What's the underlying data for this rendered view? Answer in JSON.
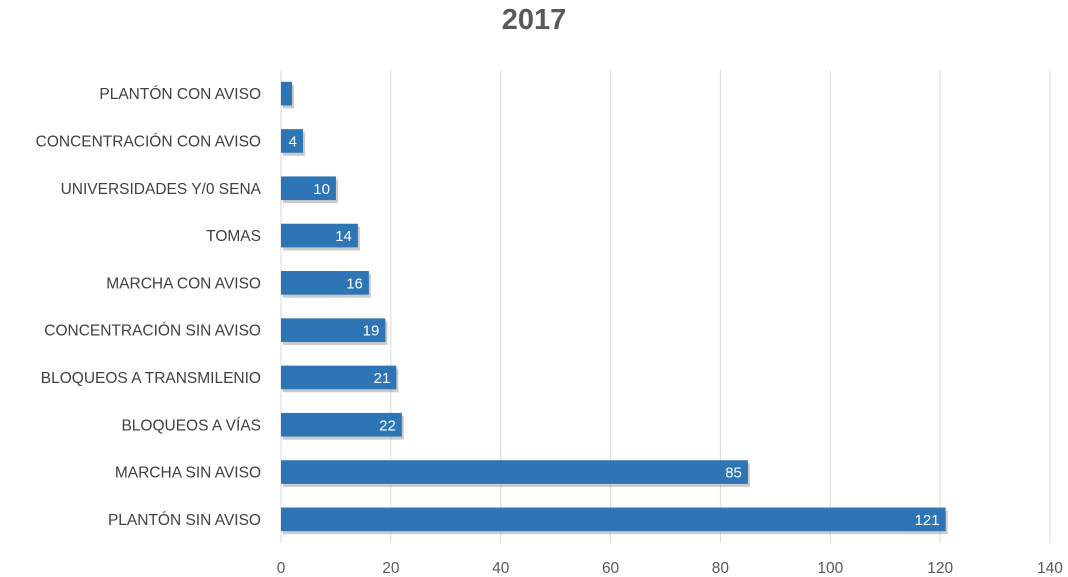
{
  "chart_data": {
    "type": "bar",
    "orientation": "horizontal",
    "title": "2017",
    "xlabel": "",
    "ylabel": "",
    "categories": [
      "PLANTÓN CON AVISO",
      "CONCENTRACIÓN CON AVISO",
      "UNIVERSIDADES Y/0 SENA",
      "TOMAS",
      "MARCHA CON AVISO",
      "CONCENTRACIÓN SIN AVISO",
      "BLOQUEOS A TRANSMILENIO",
      "BLOQUEOS A VÍAS",
      "MARCHA SIN AVISO",
      "PLANTÓN SIN AVISO"
    ],
    "values": [
      2,
      4,
      10,
      14,
      16,
      19,
      21,
      22,
      85,
      121
    ],
    "data_labels": [
      "",
      "4",
      "10",
      "14",
      "16",
      "19",
      "21",
      "22",
      "85",
      "121"
    ],
    "xlim": [
      0,
      140
    ],
    "x_ticks": [
      "0",
      "20",
      "40",
      "60",
      "80",
      "100",
      "120",
      "140"
    ],
    "grid": "vertical",
    "legend": "none",
    "colors": {
      "bar": "#2e75b6",
      "bar_shadow": "#a6a6a6",
      "grid": "#d9d9d9",
      "text": "#595959"
    }
  }
}
